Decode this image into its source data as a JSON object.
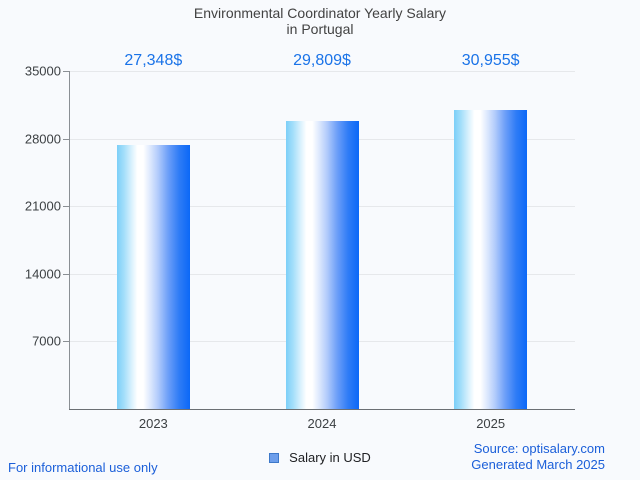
{
  "title": {
    "line1": "Environmental Coordinator Yearly Salary",
    "line2": "in Portugal"
  },
  "chart_data": {
    "type": "bar",
    "categories": [
      "2023",
      "2024",
      "2025"
    ],
    "values": [
      27348,
      29809,
      30955
    ],
    "value_labels": [
      "27,348$",
      "29,809$",
      "30,955$"
    ],
    "series": [
      {
        "name": "Salary in USD",
        "values": [
          27348,
          29809,
          30955
        ]
      }
    ],
    "xlabel": "",
    "ylabel": "",
    "ylim": [
      0,
      35000
    ],
    "yticks": [
      7000,
      14000,
      21000,
      28000,
      35000
    ],
    "grid": true,
    "legend_position": "bottom",
    "bar_gradient_stops": [
      "#7ccff8 0%",
      "#a5dffa 10%",
      "#d9f1fd 20%",
      "#ffffff 28%",
      "#ffffff 36%",
      "#dbe7fd 46%",
      "#b3ccfb 56%",
      "#6d9ff8 70%",
      "#2f7cf6 85%",
      "#0b68f7 100%"
    ]
  },
  "legend": {
    "label": "Salary in USD",
    "swatch_fill": "#6d9eeb",
    "swatch_border": "#3d78c9"
  },
  "footer": {
    "left": "For informational use only",
    "source": "Source: optisalary.com",
    "generated": "Generated March 2025"
  },
  "colors": {
    "background": "#f8fafd",
    "title_text": "#424242",
    "value_label_text": "#1a73e8",
    "footer_link_text": "#1b5fd9",
    "axis_text": "#3c4043",
    "gridline": "#e6e8eb"
  }
}
